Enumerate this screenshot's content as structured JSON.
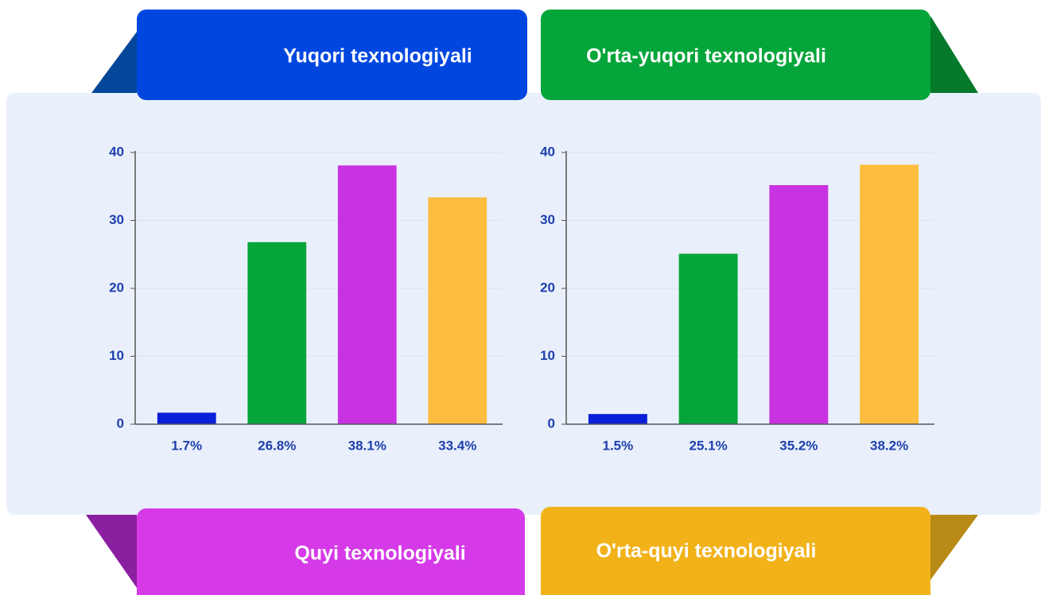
{
  "banners": [
    {
      "label": "Yuqori texnologiyali",
      "color": "#0047e0"
    },
    {
      "label": "O'rta-yuqori texnologiyali",
      "color": "#04a53a"
    },
    {
      "label": "Quyi texnologiyali",
      "color": "#d63ae8"
    },
    {
      "label": "O'rta-quyi texnologiyali",
      "color": "#f2b21a"
    }
  ],
  "chart_data": [
    {
      "type": "bar",
      "values": [
        1.7,
        26.8,
        38.1,
        33.4
      ],
      "value_labels": [
        "1.7%",
        "26.8%",
        "38.1%",
        "33.4%"
      ],
      "colors": [
        "#0a1fd9",
        "#05a53b",
        "#c932e0",
        "#fdbd3f"
      ],
      "ylim": [
        0,
        40
      ],
      "yticks": [
        0,
        10,
        20,
        30,
        40
      ],
      "grid": true
    },
    {
      "type": "bar",
      "values": [
        1.5,
        25.1,
        35.2,
        38.2
      ],
      "value_labels": [
        "1.5%",
        "25.1%",
        "35.2%",
        "38.2%"
      ],
      "colors": [
        "#0a1fd9",
        "#05a53b",
        "#c932e0",
        "#fdbd3f"
      ],
      "ylim": [
        0,
        40
      ],
      "yticks": [
        0,
        10,
        20,
        30,
        40
      ],
      "grid": true
    }
  ]
}
